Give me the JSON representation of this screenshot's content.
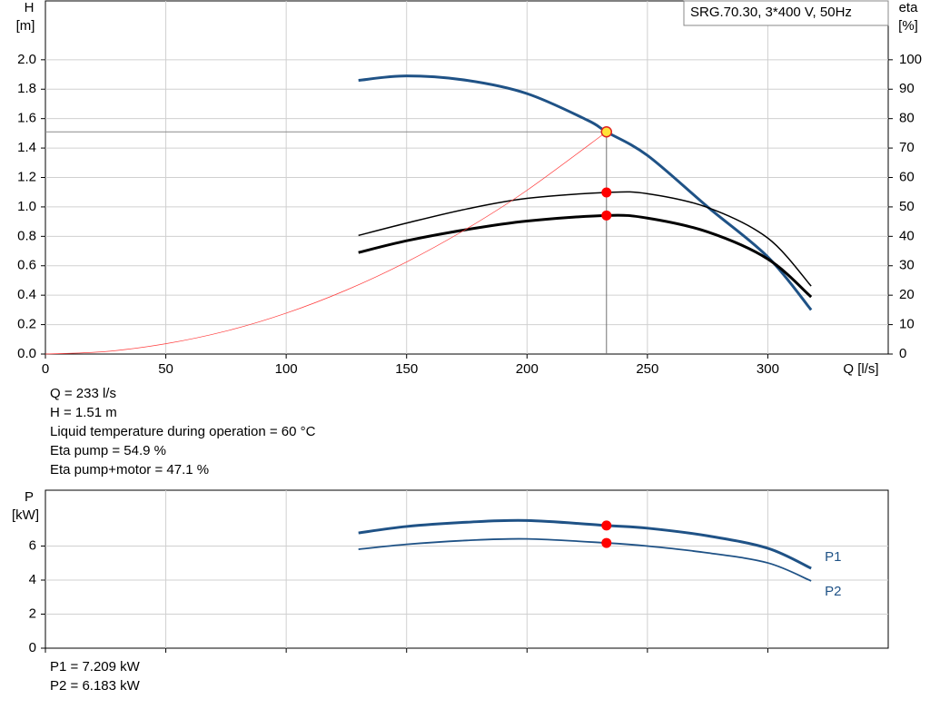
{
  "chart_data": [
    {
      "type": "line",
      "legend": "SRG.70.30, 3*400 V, 50Hz",
      "y_label": "H",
      "y_unit": "[m]",
      "y2_label": "eta",
      "y2_unit": "[%]",
      "x_label": "Q [l/s]",
      "xlim": [
        0,
        350
      ],
      "xticks": [
        0,
        50,
        100,
        150,
        200,
        250,
        300
      ],
      "ylim": [
        0,
        2.4
      ],
      "yticks": [
        {
          "value": 0,
          "label": "0.0"
        },
        {
          "value": 0.2,
          "label": "0.2"
        },
        {
          "value": 0.4,
          "label": "0.4"
        },
        {
          "value": 0.6,
          "label": "0.6"
        },
        {
          "value": 0.8,
          "label": "0.8"
        },
        {
          "value": 1,
          "label": "1.0"
        },
        {
          "value": 1.2,
          "label": "1.2"
        },
        {
          "value": 1.4,
          "label": "1.4"
        },
        {
          "value": 1.6,
          "label": "1.6"
        },
        {
          "value": 1.8,
          "label": "1.8"
        },
        {
          "value": 2,
          "label": "2.0"
        }
      ],
      "y2lim": [
        0,
        120
      ],
      "y2ticks": [
        0,
        10,
        20,
        30,
        40,
        50,
        60,
        70,
        80,
        90,
        100
      ],
      "grid": true,
      "duty_x": 233,
      "series": [
        {
          "color": "#1f5286",
          "style": "thick",
          "marker_color": "#ffe23a",
          "duty_lines": true,
          "x": [
            130,
            150,
            175,
            200,
            225,
            233,
            250,
            275,
            300,
            318
          ],
          "values": [
            1.86,
            1.89,
            1.86,
            1.77,
            1.59,
            1.51,
            1.35,
            1.0,
            0.66,
            0.3
          ]
        },
        {
          "color": "#000000",
          "style": "thin",
          "axis": "y2",
          "marker_color": "#ff0000",
          "x": [
            130,
            150,
            175,
            200,
            233,
            250,
            275,
            300,
            318
          ],
          "values": [
            40.3,
            44.5,
            49.3,
            52.9,
            54.9,
            54.5,
            49.8,
            39.4,
            23.1
          ]
        },
        {
          "color": "#000000",
          "style": "thick",
          "axis": "y2",
          "marker_color": "#ff0000",
          "x": [
            130,
            150,
            175,
            200,
            233,
            250,
            275,
            300,
            318
          ],
          "values": [
            34.5,
            38.5,
            42.3,
            45.2,
            47.1,
            46.2,
            41.5,
            32.3,
            19.4
          ]
        },
        {
          "color": "#ff3a3a",
          "style": "hairline",
          "x": [
            0,
            25,
            50,
            75,
            100,
            125,
            150,
            175,
            200,
            233
          ],
          "values": [
            0,
            0.017,
            0.07,
            0.156,
            0.278,
            0.435,
            0.626,
            0.852,
            1.113,
            1.51
          ]
        }
      ],
      "annotations": [
        "Q = 233 l/s",
        "H = 1.51 m",
        "Liquid temperature during operation = 60 °C",
        "Eta pump = 54.9 %",
        "Eta pump+motor = 47.1 %"
      ]
    },
    {
      "type": "line",
      "y_label": "P",
      "y_unit": "[kW]",
      "xlim": [
        0,
        350
      ],
      "ylim": [
        0,
        9.28
      ],
      "yticks": [
        0,
        2,
        4,
        6
      ],
      "grid": true,
      "duty_x": 233,
      "series": [
        {
          "name": "P1",
          "color": "#1f5286",
          "style": "thick",
          "marker_color": "#ff0000",
          "x": [
            130,
            150,
            175,
            200,
            233,
            250,
            275,
            300,
            318
          ],
          "values": [
            6.77,
            7.15,
            7.4,
            7.5,
            7.209,
            7.05,
            6.6,
            5.87,
            4.69
          ]
        },
        {
          "name": "P2",
          "color": "#1f5286",
          "style": "medium",
          "marker_color": "#ff0000",
          "x": [
            130,
            150,
            175,
            200,
            233,
            250,
            275,
            300,
            318
          ],
          "values": [
            5.81,
            6.1,
            6.33,
            6.42,
            6.183,
            6.0,
            5.6,
            5.01,
            3.95
          ]
        }
      ],
      "annotations": [
        "P1 = 7.209 kW",
        "P2 = 6.183 kW"
      ]
    }
  ]
}
